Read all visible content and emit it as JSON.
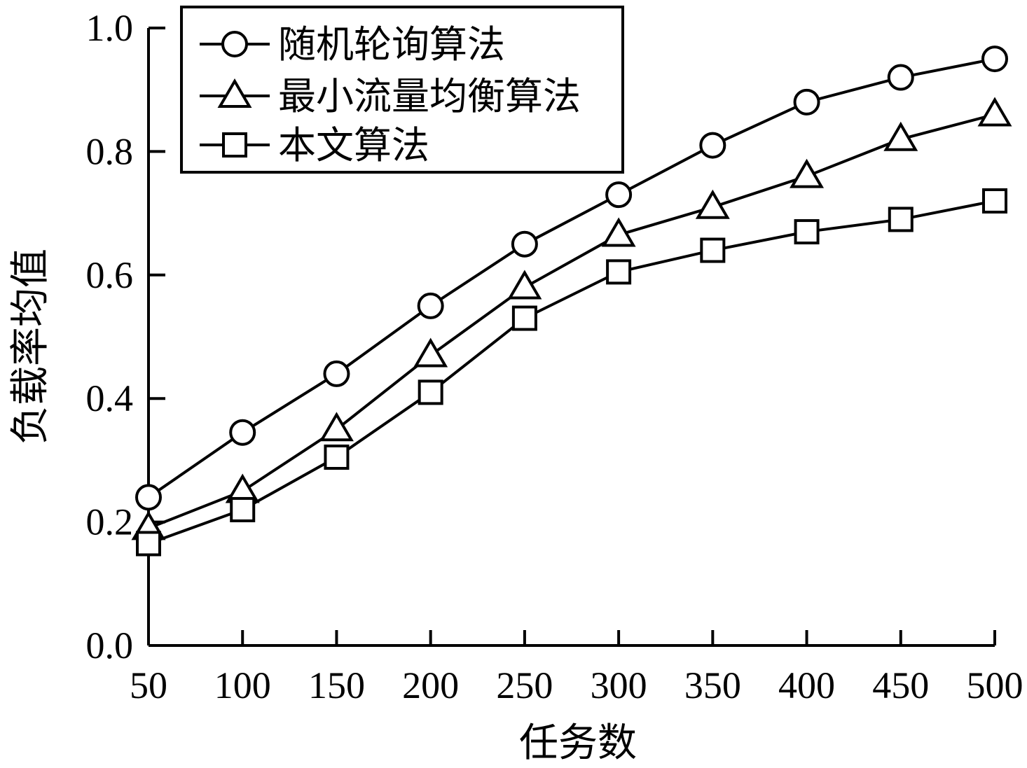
{
  "chart_data": {
    "type": "line",
    "title": "",
    "xlabel": "任务数",
    "ylabel": "负载率均值",
    "x": [
      50,
      100,
      150,
      200,
      250,
      300,
      350,
      400,
      450,
      500
    ],
    "xticks": [
      "50",
      "100",
      "150",
      "200",
      "250",
      "300",
      "350",
      "400",
      "450",
      "500"
    ],
    "yticks": [
      "0.0",
      "0.2",
      "0.4",
      "0.6",
      "0.8",
      "1.0"
    ],
    "xlim": [
      50,
      500
    ],
    "ylim": [
      0.0,
      1.0
    ],
    "grid": false,
    "legend_position": "top-left",
    "series": [
      {
        "name": "随机轮询算法",
        "marker": "circle",
        "values": [
          0.24,
          0.345,
          0.44,
          0.55,
          0.65,
          0.73,
          0.81,
          0.88,
          0.92,
          0.95
        ]
      },
      {
        "name": "最小流量均衡算法",
        "marker": "triangle",
        "values": [
          0.19,
          0.25,
          0.35,
          0.47,
          0.58,
          0.665,
          0.71,
          0.76,
          0.82,
          0.86
        ]
      },
      {
        "name": "本文算法",
        "marker": "square",
        "values": [
          0.165,
          0.22,
          0.305,
          0.41,
          0.53,
          0.605,
          0.64,
          0.67,
          0.69,
          0.72
        ]
      }
    ],
    "colors": {
      "line": "#000000",
      "marker_fill": "#ffffff",
      "background": "#ffffff"
    }
  }
}
